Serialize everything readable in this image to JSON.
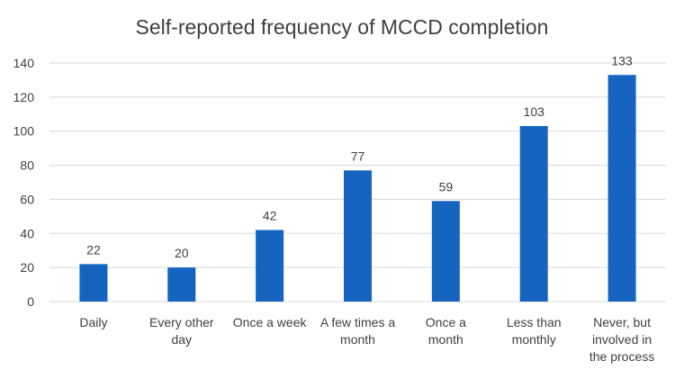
{
  "chart_data": {
    "type": "bar",
    "title": "Self-reported frequency of MCCD completion",
    "xlabel": "",
    "ylabel": "",
    "categories": [
      [
        "Daily"
      ],
      [
        "Every other",
        "day"
      ],
      [
        "Once a week"
      ],
      [
        "A few times a",
        "month"
      ],
      [
        "Once a",
        "month"
      ],
      [
        "Less than",
        "monthly"
      ],
      [
        "Never, but",
        "involved in",
        "the process"
      ]
    ],
    "values": [
      22,
      20,
      42,
      77,
      59,
      103,
      133
    ],
    "ylim": [
      0,
      140
    ],
    "yticks": [
      0,
      20,
      40,
      60,
      80,
      100,
      120,
      140
    ],
    "grid": true,
    "legend": "none",
    "bar_color": "#1565c0"
  }
}
